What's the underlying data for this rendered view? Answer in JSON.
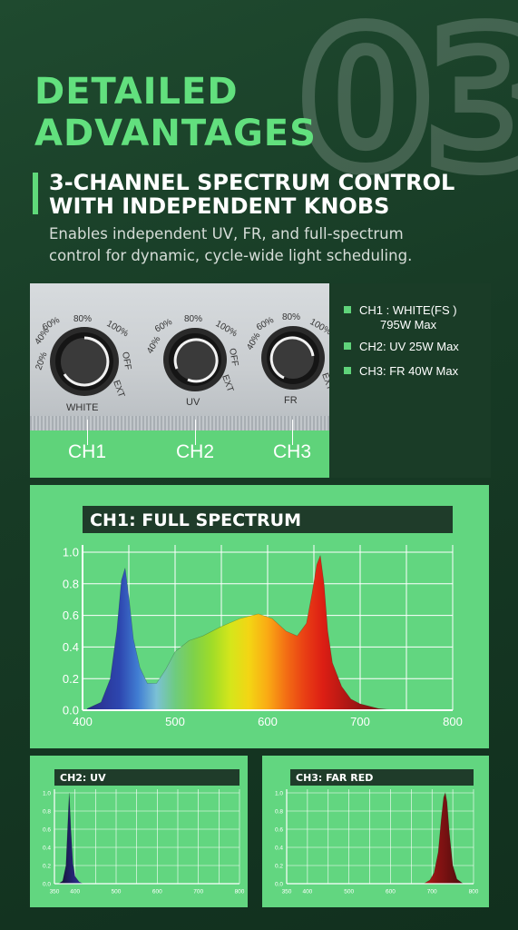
{
  "header": {
    "big_number": "03",
    "title": "DETAILED ADVANTAGES",
    "subtitle_line1": "3-CHANNEL SPECTRUM CONTROL",
    "subtitle_line2": "WITH INDEPENDENT KNOBS",
    "description_line1": "Enables independent UV, FR, and full-spectrum",
    "description_line2": "control for dynamic, cycle-wide light scheduling."
  },
  "knobs": [
    {
      "channel": "CH1",
      "label": "WHITE",
      "marks": [
        "20%",
        "40%",
        "60%",
        "80%",
        "100%",
        "OFF",
        "EXT"
      ]
    },
    {
      "channel": "CH2",
      "label": "UV",
      "marks": [
        "40%",
        "60%",
        "80%",
        "100%",
        "OFF",
        "EXT"
      ]
    },
    {
      "channel": "CH3",
      "label": "FR",
      "marks": [
        "40%",
        "60%",
        "80%",
        "100%",
        "EXT"
      ]
    }
  ],
  "specs": [
    {
      "line1": "CH1 : WHITE(FS )",
      "line2": "795W Max"
    },
    {
      "line1": "CH2: UV 25W Max",
      "line2": ""
    },
    {
      "line1": "CH3: FR 40W Max",
      "line2": ""
    }
  ],
  "colors": {
    "accent": "#62e07e",
    "panel_green": "#62d680",
    "dark_green": "#1f3c2a"
  },
  "chart_data": [
    {
      "type": "area",
      "title": "CH1: FULL SPECTRUM",
      "xlim": [
        400,
        800
      ],
      "ylim": [
        0,
        1.0
      ],
      "xticks": [
        400,
        500,
        600,
        700,
        800
      ],
      "yticks": [
        0.0,
        0.2,
        0.4,
        0.6,
        0.8,
        1.0
      ],
      "grid": true,
      "x": [
        405,
        420,
        430,
        437,
        442,
        446,
        450,
        455,
        462,
        470,
        480,
        490,
        500,
        515,
        530,
        550,
        570,
        590,
        605,
        620,
        632,
        642,
        648,
        653,
        657,
        661,
        665,
        670,
        680,
        690,
        700,
        720,
        740
      ],
      "y": [
        0.01,
        0.05,
        0.2,
        0.5,
        0.82,
        0.9,
        0.72,
        0.45,
        0.27,
        0.17,
        0.17,
        0.26,
        0.37,
        0.44,
        0.47,
        0.53,
        0.58,
        0.61,
        0.58,
        0.5,
        0.47,
        0.55,
        0.74,
        0.92,
        0.98,
        0.8,
        0.5,
        0.3,
        0.15,
        0.07,
        0.04,
        0.01,
        0.0
      ]
    },
    {
      "type": "area",
      "title": "CH2: UV",
      "xlim": [
        350,
        800
      ],
      "ylim": [
        0,
        1.0
      ],
      "xticks": [
        350,
        400,
        500,
        600,
        700,
        800
      ],
      "yticks": [
        0.0,
        0.2,
        0.4,
        0.6,
        0.8,
        1.0
      ],
      "grid": true,
      "x": [
        360,
        370,
        378,
        382,
        386,
        390,
        395,
        400,
        410,
        420
      ],
      "y": [
        0.0,
        0.03,
        0.2,
        0.6,
        1.0,
        0.6,
        0.22,
        0.08,
        0.02,
        0.0
      ]
    },
    {
      "type": "area",
      "title": "CH3: FAR RED",
      "xlim": [
        350,
        800
      ],
      "ylim": [
        0,
        1.0
      ],
      "xticks": [
        350,
        400,
        500,
        600,
        700,
        800
      ],
      "yticks": [
        0.0,
        0.2,
        0.4,
        0.6,
        0.8,
        1.0
      ],
      "grid": true,
      "x": [
        680,
        695,
        705,
        715,
        722,
        728,
        732,
        736,
        742,
        750,
        760,
        775
      ],
      "y": [
        0.0,
        0.04,
        0.12,
        0.35,
        0.7,
        0.95,
        1.0,
        0.9,
        0.55,
        0.2,
        0.05,
        0.0
      ]
    }
  ]
}
